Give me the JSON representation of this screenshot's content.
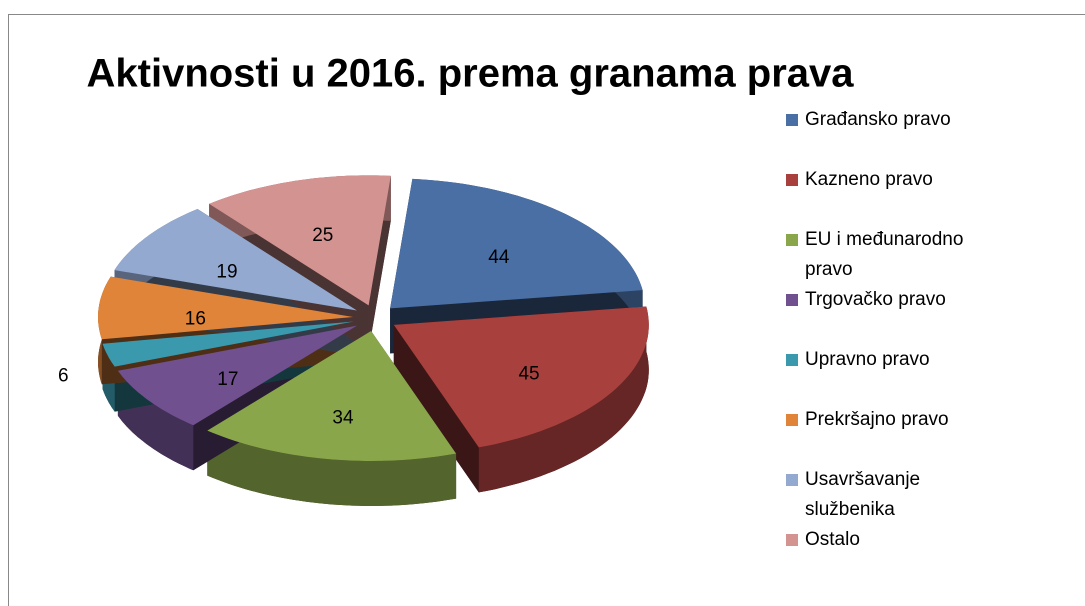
{
  "chart_data": {
    "type": "pie",
    "title": "Aktivnosti u 2016. prema granama prava",
    "categories": [
      "Građansko pravo",
      "Kazneno pravo",
      "EU i međunarodno pravo",
      "Trgovačko pravo",
      "Upravno pravo",
      "Prekršajno pravo",
      "Usavršavanje službenika",
      "Ostalo"
    ],
    "values": [
      44,
      45,
      34,
      17,
      6,
      16,
      19,
      25
    ],
    "colors": [
      "#4a6fa5",
      "#a8403e",
      "#8aa64b",
      "#70508f",
      "#3a99ad",
      "#e0843a",
      "#93a9d0",
      "#d39391"
    ],
    "legend": "right"
  }
}
